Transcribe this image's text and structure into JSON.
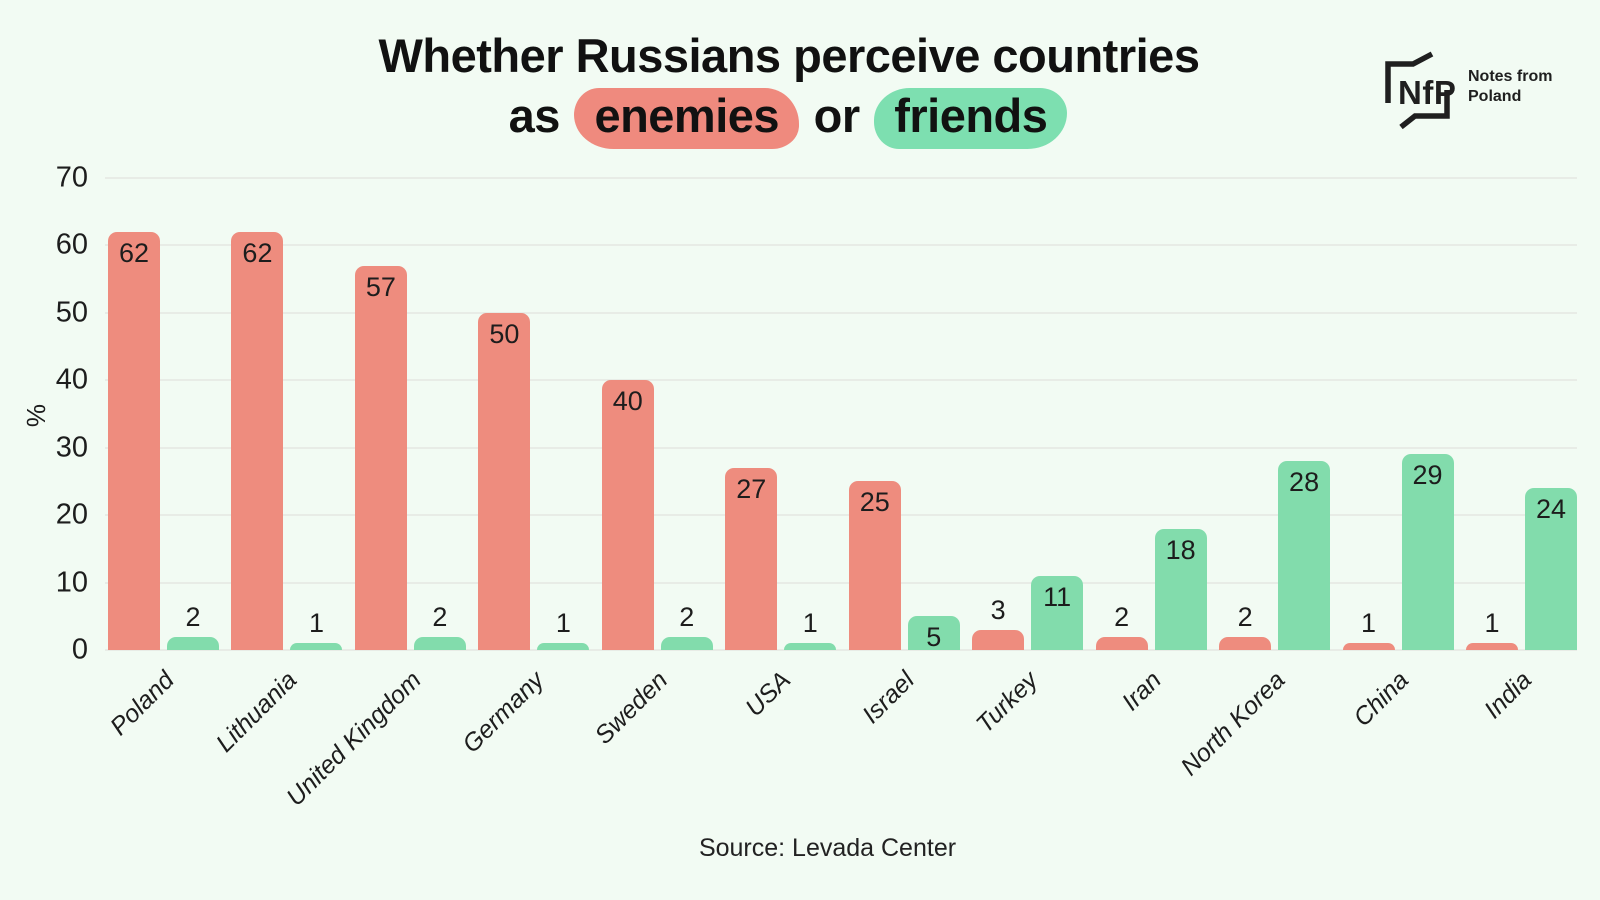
{
  "title": {
    "line1": "Whether Russians perceive countries",
    "line2_prefix": "as",
    "enemies_word": "enemies",
    "line2_conjunction": "or",
    "friends_word": "friends"
  },
  "logo": {
    "monogram": "NfP",
    "name_line1": "Notes from",
    "name_line2": "Poland"
  },
  "source": "Source: Levada Center",
  "colors": {
    "enemy": "#EE8C7E",
    "friend": "#82DCAC",
    "enemy_highlight": "#EF8A7E",
    "friend_highlight": "#7DDFB0",
    "background": "#F2FBF3",
    "gridline": "#DDDED9"
  },
  "chart_data": {
    "type": "bar",
    "title": "Whether Russians perceive countries as enemies or friends",
    "categories": [
      "Poland",
      "Lithuania",
      "United Kingdom",
      "Germany",
      "Sweden",
      "USA",
      "Israel",
      "Turkey",
      "Iran",
      "North Korea",
      "China",
      "India"
    ],
    "series": [
      {
        "name": "enemies",
        "color_key": "enemy",
        "values": [
          62,
          62,
          57,
          50,
          40,
          27,
          25,
          3,
          2,
          2,
          1,
          1
        ]
      },
      {
        "name": "friends",
        "color_key": "friend",
        "values": [
          2,
          1,
          2,
          1,
          2,
          1,
          5,
          11,
          18,
          28,
          29,
          24
        ]
      }
    ],
    "xlabel": "",
    "ylabel": "%",
    "ylim": [
      0,
      70
    ],
    "yticks": [
      0,
      10,
      20,
      30,
      40,
      50,
      60,
      70
    ],
    "grid": true,
    "legend_position": "none",
    "value_labels": true
  }
}
